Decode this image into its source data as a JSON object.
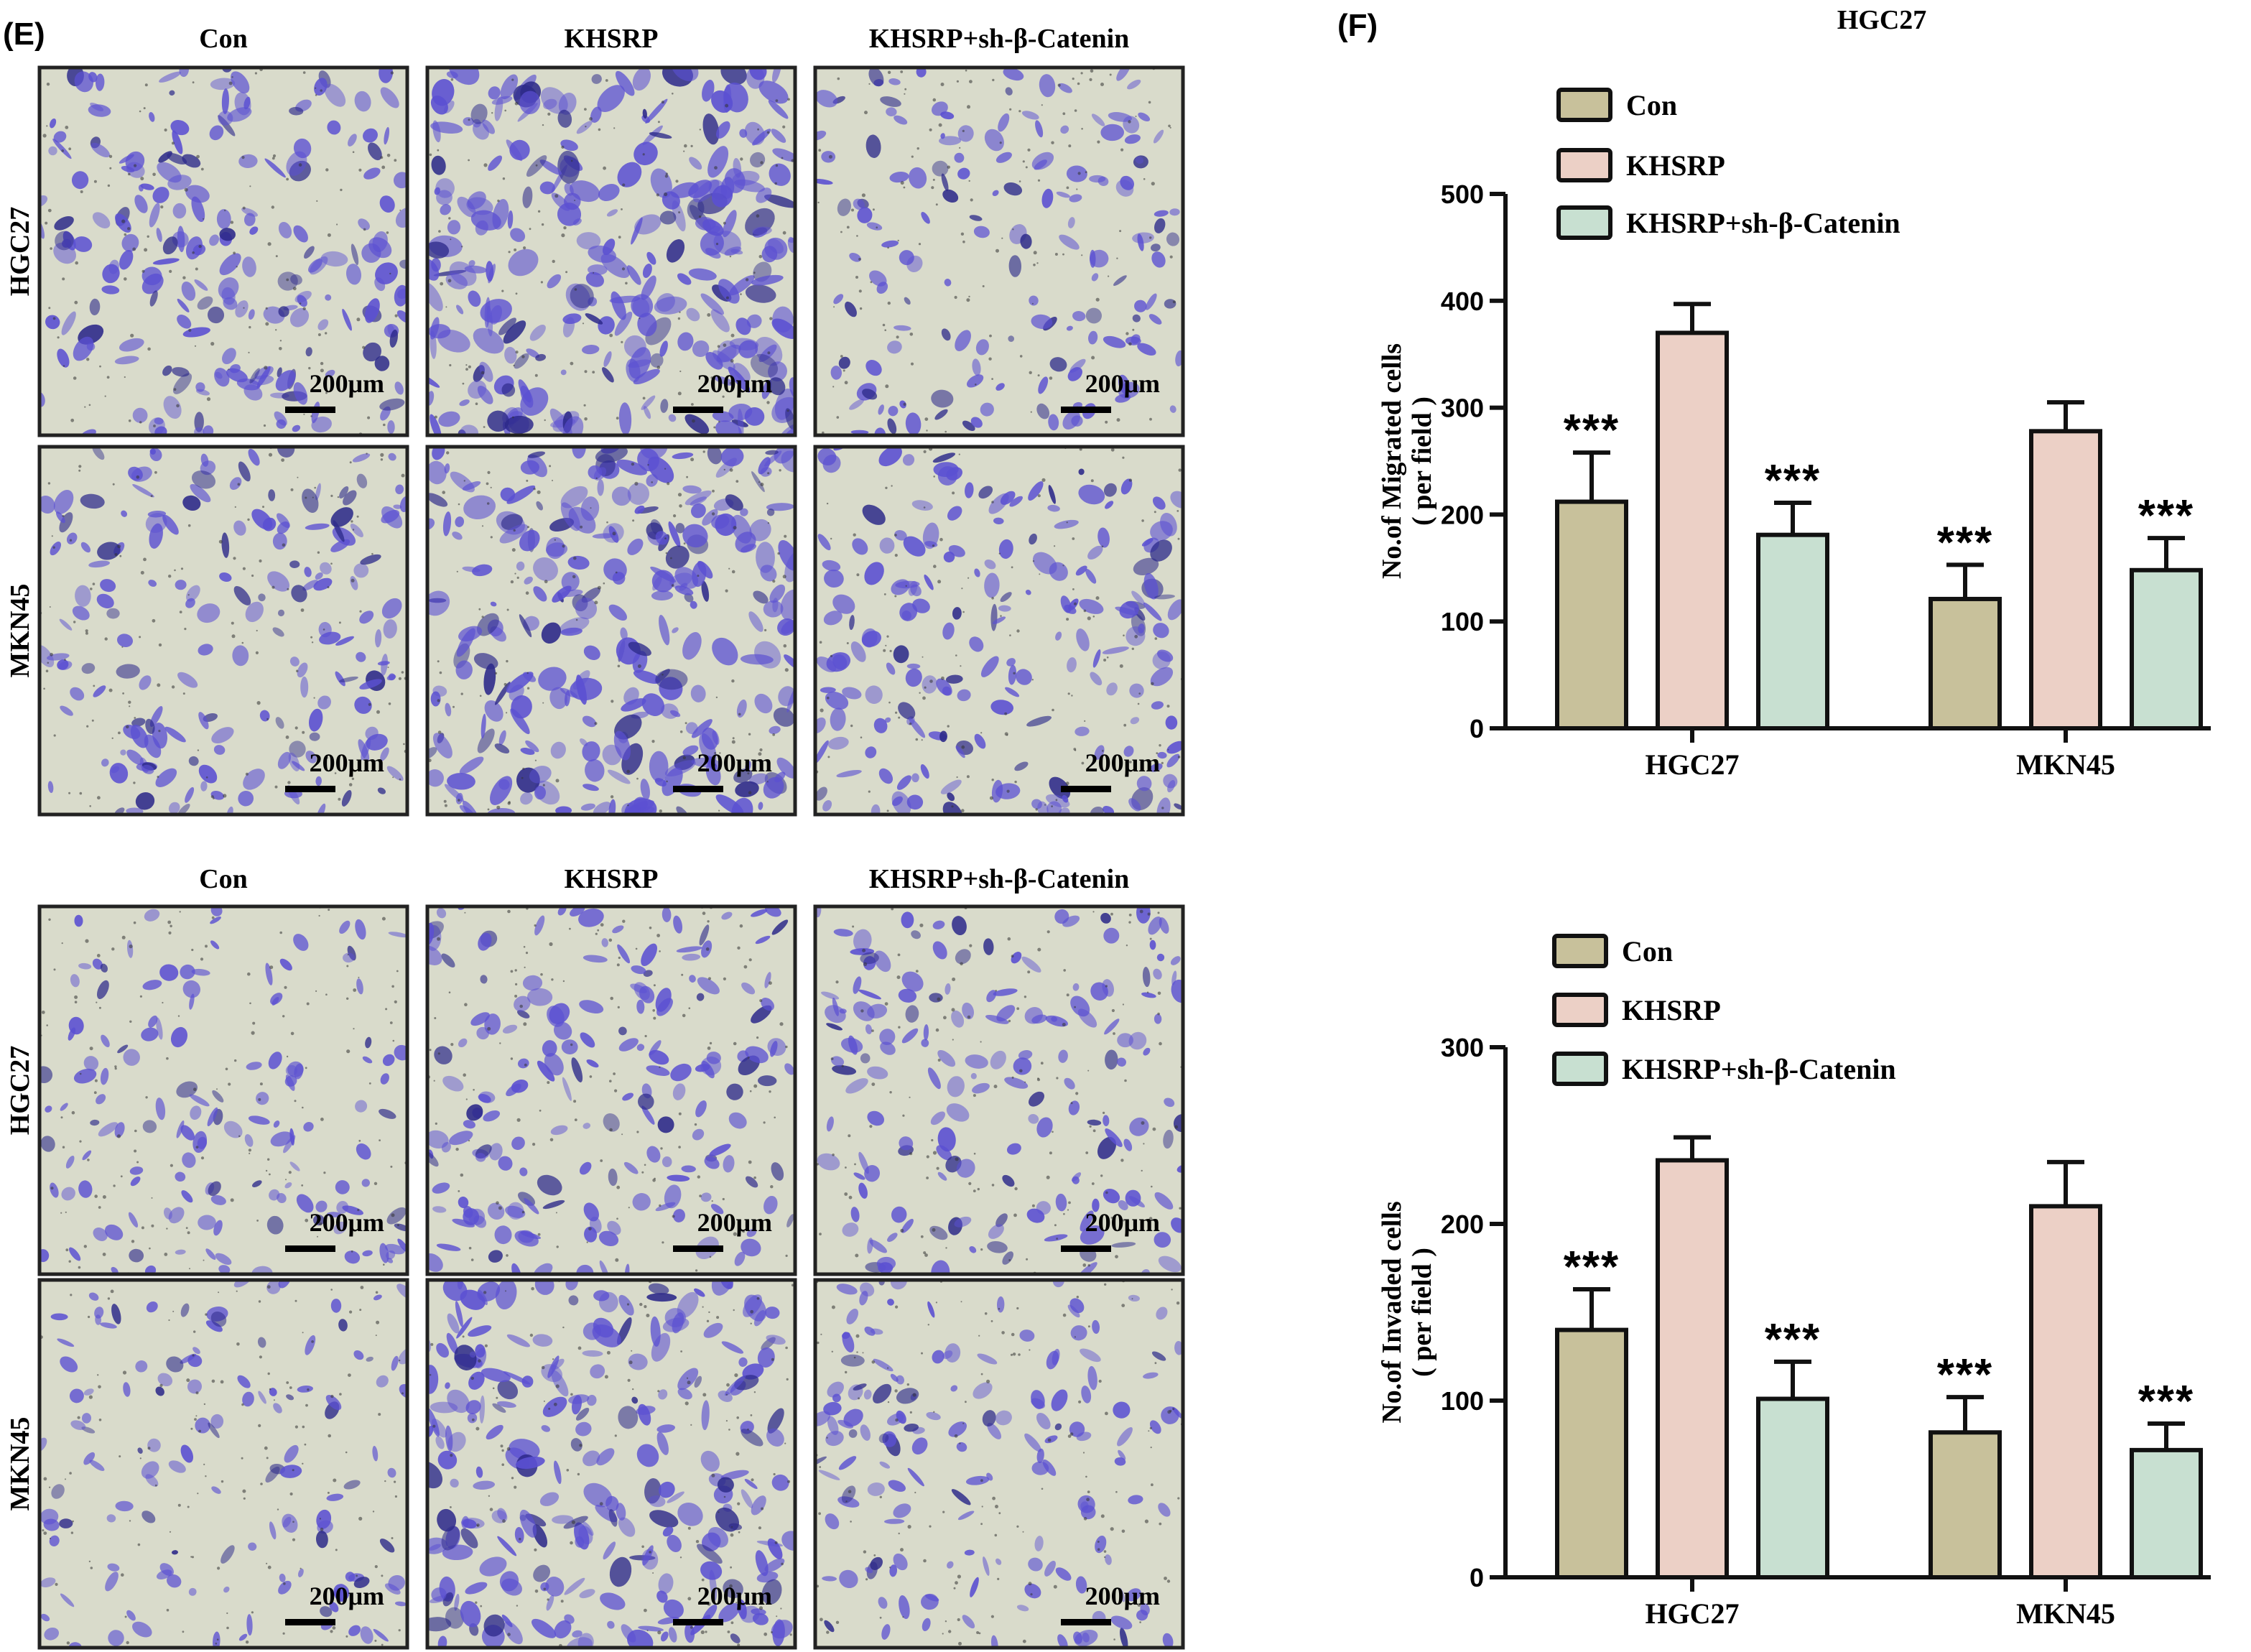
{
  "panels": {
    "E": "(E)",
    "F": "(F)",
    "F_header": "HGC27"
  },
  "micrographs": {
    "migration": {
      "columns": [
        "Con",
        "KHSRP",
        "KHSRP+sh-β-Catenin"
      ],
      "rows": [
        "HGC27",
        "MKN45"
      ],
      "scalebar": "200μm",
      "levels": [
        [
          0.55,
          0.85,
          0.35
        ],
        [
          0.45,
          0.8,
          0.5
        ]
      ]
    },
    "invasion": {
      "columns": [
        "Con",
        "KHSRP",
        "KHSRP+sh-β-Catenin"
      ],
      "rows": [
        "HGC27",
        "MKN45"
      ],
      "scalebar": "200μm",
      "levels": [
        [
          0.3,
          0.45,
          0.4
        ],
        [
          0.25,
          0.7,
          0.35
        ]
      ]
    }
  },
  "colors": {
    "con": "#c8c19b",
    "khsrp": "#ecd0c6",
    "sh": "#c8e0d1",
    "stain": "#5b50d2",
    "stain_dark": "#2d2a8a",
    "field": "#d9dbcb"
  },
  "chart_data": [
    {
      "type": "bar",
      "categories": [
        "HGC27",
        "MKN45"
      ],
      "series": [
        {
          "name": "Con",
          "values": [
            212,
            121
          ],
          "errors": [
            46,
            32
          ],
          "sig": [
            "***",
            "***"
          ]
        },
        {
          "name": "KHSRP",
          "values": [
            370,
            278
          ],
          "errors": [
            27,
            27
          ],
          "sig": [
            "",
            ""
          ]
        },
        {
          "name": "KHSRP+sh-β-Catenin",
          "values": [
            181,
            148
          ],
          "errors": [
            30,
            30
          ],
          "sig": [
            "***",
            "***"
          ]
        }
      ],
      "ylabel": "No.of Migrated cells\n( per field )",
      "ylim": [
        0,
        500
      ],
      "yticks": [
        0,
        100,
        200,
        300,
        400,
        500
      ],
      "legend": "top-left"
    },
    {
      "type": "bar",
      "categories": [
        "HGC27",
        "MKN45"
      ],
      "series": [
        {
          "name": "Con",
          "values": [
            140,
            82
          ],
          "errors": [
            23,
            20
          ],
          "sig": [
            "***",
            "***"
          ]
        },
        {
          "name": "KHSRP",
          "values": [
            236,
            210
          ],
          "errors": [
            13,
            25
          ],
          "sig": [
            "",
            ""
          ]
        },
        {
          "name": "KHSRP+sh-β-Catenin",
          "values": [
            101,
            72
          ],
          "errors": [
            21,
            15
          ],
          "sig": [
            "***",
            "***"
          ]
        }
      ],
      "ylabel": "No.of Invaded cells\n( per field )",
      "ylim": [
        0,
        300
      ],
      "yticks": [
        0,
        100,
        200,
        300
      ],
      "legend": "top-left"
    }
  ]
}
